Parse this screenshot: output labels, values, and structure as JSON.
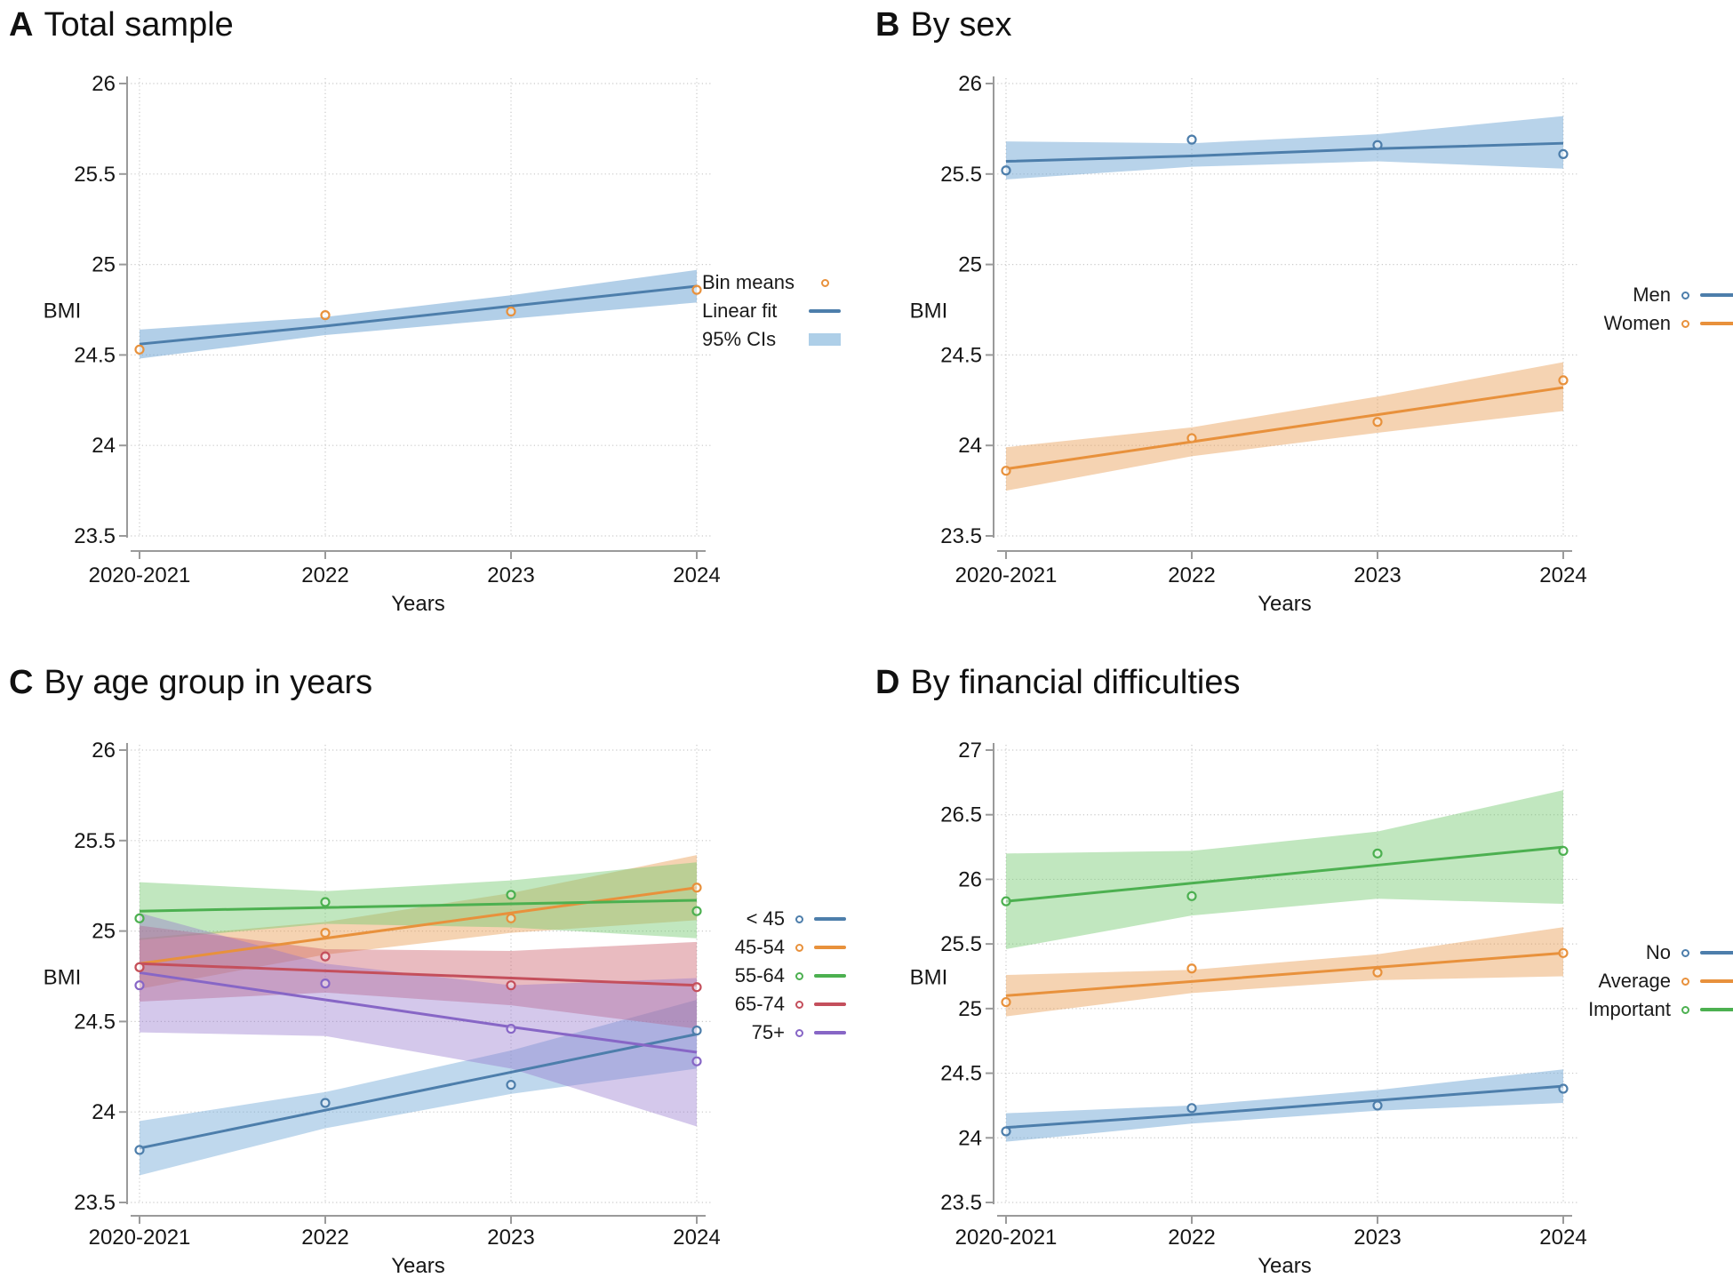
{
  "figure": {
    "background": "#ffffff",
    "xlabel": "Years",
    "ylabel": "BMI",
    "categories": [
      "2020-2021",
      "2022",
      "2023",
      "2024"
    ]
  },
  "palette": {
    "blue": "#4D7EAB",
    "orange": "#E8913C",
    "green": "#4CB050",
    "red": "#C44F5C",
    "purple": "#8766C6",
    "band_blue": "#AECFE8",
    "axis_gray": "#9a9a9a",
    "grid_gray": "#c9c9c9"
  },
  "chart_data": [
    {
      "type": "line",
      "panel_letter": "A",
      "title": "Total sample",
      "xlabel": "Years",
      "ylabel": "BMI",
      "categories": [
        "2020-2021",
        "2022",
        "2023",
        "2024"
      ],
      "ylim": [
        23.5,
        26
      ],
      "yticks": [
        23.5,
        24,
        24.5,
        25,
        25.5,
        26
      ],
      "grid": true,
      "legend_position": "right",
      "legend": [
        {
          "label": "Bin means",
          "color": "#E8913C",
          "swatches": [
            "dot"
          ]
        },
        {
          "label": "Linear fit",
          "color": "#4D7EAB",
          "swatches": [
            "line"
          ]
        },
        {
          "label": "95% CIs",
          "color": "#AECFE8",
          "swatches": [
            "band"
          ]
        }
      ],
      "series": [
        {
          "name": "Total sample",
          "line_color": "#4D7EAB",
          "dot_color": "#E8913C",
          "band_color": "rgba(114,168,214,0.55)",
          "bin_means": [
            24.53,
            24.72,
            24.74,
            24.86
          ],
          "fit": [
            24.56,
            24.66,
            24.77,
            24.88
          ],
          "ci_lower": [
            24.48,
            24.61,
            24.7,
            24.79
          ],
          "ci_upper": [
            24.64,
            24.71,
            24.83,
            24.97
          ]
        }
      ]
    },
    {
      "type": "line",
      "panel_letter": "B",
      "title": "By sex",
      "xlabel": "Years",
      "ylabel": "BMI",
      "categories": [
        "2020-2021",
        "2022",
        "2023",
        "2024"
      ],
      "ylim": [
        23.5,
        26
      ],
      "yticks": [
        23.5,
        24,
        24.5,
        25,
        25.5,
        26
      ],
      "grid": true,
      "legend_position": "right",
      "legend": [
        {
          "label": "Men",
          "color": "#4D7EAB",
          "swatches": [
            "dot",
            "line"
          ]
        },
        {
          "label": "Women",
          "color": "#E8913C",
          "swatches": [
            "dot",
            "line"
          ]
        }
      ],
      "series": [
        {
          "name": "Men",
          "line_color": "#4D7EAB",
          "dot_color": "#4D7EAB",
          "band_color": "rgba(114,168,214,0.50)",
          "bin_means": [
            25.52,
            25.69,
            25.66,
            25.61
          ],
          "fit": [
            25.57,
            25.6,
            25.64,
            25.67
          ],
          "ci_lower": [
            25.47,
            25.54,
            25.57,
            25.53
          ],
          "ci_upper": [
            25.68,
            25.67,
            25.72,
            25.82
          ]
        },
        {
          "name": "Women",
          "line_color": "#E8913C",
          "dot_color": "#E8913C",
          "band_color": "rgba(233,158,85,0.45)",
          "bin_means": [
            23.86,
            24.04,
            24.13,
            24.36
          ],
          "fit": [
            23.87,
            24.02,
            24.17,
            24.32
          ],
          "ci_lower": [
            23.75,
            23.94,
            24.07,
            24.19
          ],
          "ci_upper": [
            23.99,
            24.1,
            24.27,
            24.46
          ]
        }
      ]
    },
    {
      "type": "line",
      "panel_letter": "C",
      "title": "By age group in years",
      "xlabel": "Years",
      "ylabel": "BMI",
      "categories": [
        "2020-2021",
        "2022",
        "2023",
        "2024"
      ],
      "ylim": [
        23.5,
        26
      ],
      "yticks": [
        23.5,
        24,
        24.5,
        25,
        25.5,
        26
      ],
      "grid": true,
      "legend_position": "right",
      "legend": [
        {
          "label": "< 45",
          "color": "#4D7EAB",
          "swatches": [
            "dot",
            "line"
          ]
        },
        {
          "label": "45-54",
          "color": "#E8913C",
          "swatches": [
            "dot",
            "line"
          ]
        },
        {
          "label": "55-64",
          "color": "#4CB050",
          "swatches": [
            "dot",
            "line"
          ]
        },
        {
          "label": "65-74",
          "color": "#C44F5C",
          "swatches": [
            "dot",
            "line"
          ]
        },
        {
          "label": "75+",
          "color": "#8766C6",
          "swatches": [
            "dot",
            "line"
          ]
        }
      ],
      "series": [
        {
          "name": "< 45",
          "line_color": "#4D7EAB",
          "dot_color": "#4D7EAB",
          "band_color": "rgba(114,168,214,0.45)",
          "bin_means": [
            23.79,
            24.05,
            24.15,
            24.45
          ],
          "fit": [
            23.8,
            24.01,
            24.22,
            24.43
          ],
          "ci_lower": [
            23.65,
            23.91,
            24.1,
            24.24
          ],
          "ci_upper": [
            23.95,
            24.11,
            24.34,
            24.62
          ]
        },
        {
          "name": "45-54",
          "line_color": "#E8913C",
          "dot_color": "#E8913C",
          "band_color": "rgba(233,158,85,0.45)",
          "bin_means": [
            24.8,
            24.99,
            25.07,
            25.24
          ],
          "fit": [
            24.82,
            24.96,
            25.1,
            25.24
          ],
          "ci_lower": [
            24.68,
            24.87,
            24.99,
            25.06
          ],
          "ci_upper": [
            24.96,
            25.05,
            25.21,
            25.42
          ]
        },
        {
          "name": "55-64",
          "line_color": "#4CB050",
          "dot_color": "#4CB050",
          "band_color": "rgba(118,201,113,0.45)",
          "bin_means": [
            25.07,
            25.16,
            25.2,
            25.11
          ],
          "fit": [
            25.11,
            25.13,
            25.15,
            25.17
          ],
          "ci_lower": [
            24.95,
            25.04,
            25.02,
            24.96
          ],
          "ci_upper": [
            25.27,
            25.22,
            25.28,
            25.38
          ]
        },
        {
          "name": "65-74",
          "line_color": "#C44F5C",
          "dot_color": "#C44F5C",
          "band_color": "rgba(202,92,106,0.42)",
          "bin_means": [
            24.8,
            24.86,
            24.7,
            24.69
          ],
          "fit": [
            24.82,
            24.78,
            24.74,
            24.7
          ],
          "ci_lower": [
            24.61,
            24.66,
            24.59,
            24.46
          ],
          "ci_upper": [
            25.03,
            24.9,
            24.89,
            24.94
          ]
        },
        {
          "name": "75+",
          "line_color": "#8766C6",
          "dot_color": "#8766C6",
          "band_color": "rgba(148,118,205,0.40)",
          "bin_means": [
            24.7,
            24.71,
            24.46,
            24.28
          ],
          "fit": [
            24.77,
            24.62,
            24.47,
            24.33
          ],
          "ci_lower": [
            24.44,
            24.42,
            24.24,
            23.92
          ],
          "ci_upper": [
            25.1,
            24.82,
            24.7,
            24.74
          ]
        }
      ]
    },
    {
      "type": "line",
      "panel_letter": "D",
      "title": "By financial difficulties",
      "xlabel": "Years",
      "ylabel": "BMI",
      "categories": [
        "2020-2021",
        "2022",
        "2023",
        "2024"
      ],
      "ylim": [
        23.5,
        27
      ],
      "yticks": [
        23.5,
        24,
        24.5,
        25,
        25.5,
        26,
        26.5,
        27
      ],
      "grid": true,
      "legend_position": "right",
      "legend": [
        {
          "label": "No",
          "color": "#4D7EAB",
          "swatches": [
            "dot",
            "line"
          ]
        },
        {
          "label": "Average",
          "color": "#E8913C",
          "swatches": [
            "dot",
            "line"
          ]
        },
        {
          "label": "Important",
          "color": "#4CB050",
          "swatches": [
            "dot",
            "line"
          ]
        }
      ],
      "series": [
        {
          "name": "No",
          "line_color": "#4D7EAB",
          "dot_color": "#4D7EAB",
          "band_color": "rgba(114,168,214,0.50)",
          "bin_means": [
            24.05,
            24.23,
            24.25,
            24.38
          ],
          "fit": [
            24.08,
            24.18,
            24.29,
            24.4
          ],
          "ci_lower": [
            23.97,
            24.11,
            24.21,
            24.27
          ],
          "ci_upper": [
            24.19,
            24.25,
            24.37,
            24.53
          ]
        },
        {
          "name": "Average",
          "line_color": "#E8913C",
          "dot_color": "#E8913C",
          "band_color": "rgba(233,158,85,0.45)",
          "bin_means": [
            25.05,
            25.31,
            25.28,
            25.43
          ],
          "fit": [
            25.1,
            25.21,
            25.32,
            25.43
          ],
          "ci_lower": [
            24.94,
            25.12,
            25.22,
            25.25
          ],
          "ci_upper": [
            25.26,
            25.3,
            25.42,
            25.63
          ]
        },
        {
          "name": "Important",
          "line_color": "#4CB050",
          "dot_color": "#4CB050",
          "band_color": "rgba(118,201,113,0.45)",
          "bin_means": [
            25.83,
            25.87,
            26.2,
            26.22
          ],
          "fit": [
            25.83,
            25.97,
            26.11,
            26.25
          ],
          "ci_lower": [
            25.46,
            25.72,
            25.85,
            25.81
          ],
          "ci_upper": [
            26.2,
            26.22,
            26.37,
            26.69
          ]
        }
      ]
    }
  ]
}
